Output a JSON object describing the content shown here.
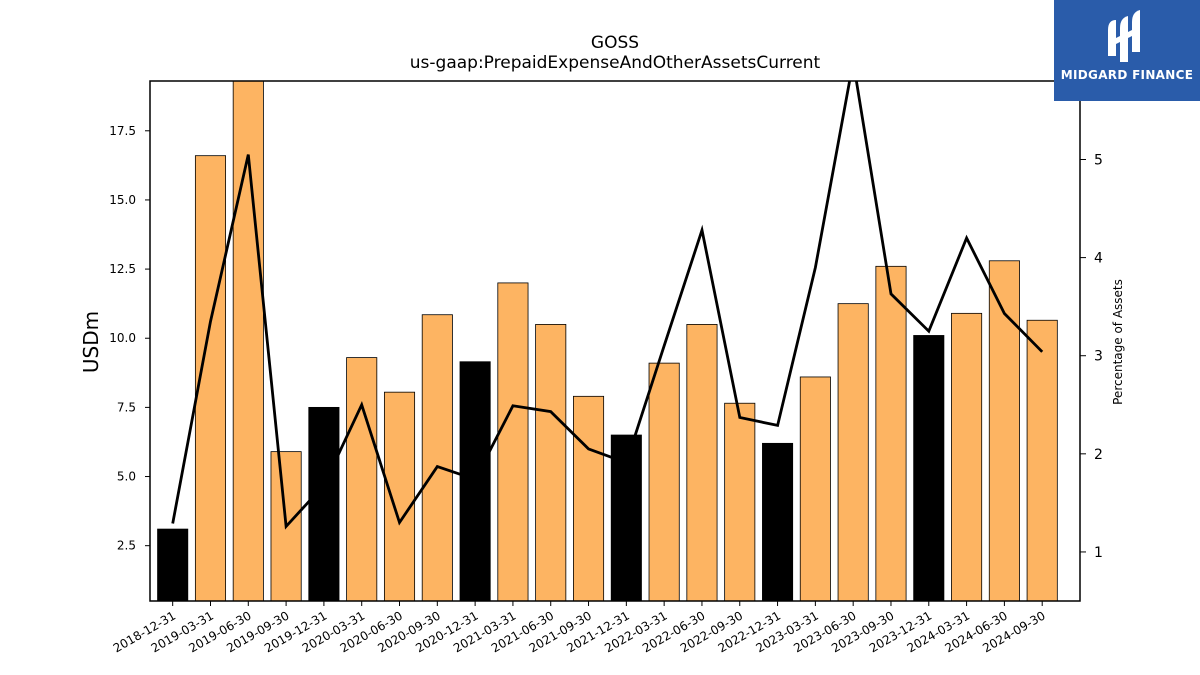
{
  "brand": {
    "name": "MIDGARD FINANCE",
    "logo_icon": "midgard-m-icon",
    "background": "#2a5caa"
  },
  "colors": {
    "quarter_bar": "#fdb462",
    "year_end_bar": "#000000",
    "line": "#000000"
  },
  "chart_data": {
    "type": "bar",
    "title": "GOSS",
    "subtitle": "us-gaap:PrepaidExpenseAndOtherAssetsCurrent",
    "ylabel": "USDm",
    "y2label": "Percentage of Assets",
    "ylim": [
      0.5,
      19.3
    ],
    "y2lim": [
      0.5,
      5.8
    ],
    "yticks": [
      "2.5",
      "5.0",
      "7.5",
      "10.0",
      "12.5",
      "15.0",
      "17.5"
    ],
    "y2ticks": [
      "1",
      "2",
      "3",
      "4",
      "5"
    ],
    "grid": false,
    "categories": [
      "2018-12-31",
      "2019-03-31",
      "2019-06-30",
      "2019-09-30",
      "2019-12-31",
      "2020-03-31",
      "2020-06-30",
      "2020-09-30",
      "2020-12-31",
      "2021-03-31",
      "2021-06-30",
      "2021-09-30",
      "2021-12-31",
      "2022-03-31",
      "2022-06-30",
      "2022-09-30",
      "2022-12-31",
      "2023-03-31",
      "2023-06-30",
      "2023-09-30",
      "2023-12-31",
      "2024-03-31",
      "2024-06-30",
      "2024-09-30"
    ],
    "series": [
      {
        "type": "bar",
        "values": [
          3.1,
          16.6,
          19.4,
          5.9,
          7.5,
          9.3,
          8.05,
          10.85,
          9.15,
          12.0,
          10.5,
          7.9,
          6.5,
          9.1,
          10.5,
          7.65,
          6.2,
          8.6,
          11.25,
          12.6,
          10.1,
          10.9,
          12.8,
          10.65
        ]
      },
      {
        "type": "line",
        "axis": "right",
        "values": [
          1.29,
          3.35,
          5.05,
          1.26,
          1.68,
          2.5,
          1.3,
          1.87,
          1.74,
          2.49,
          2.43,
          2.05,
          1.91,
          3.1,
          4.28,
          2.37,
          2.29,
          3.9,
          6.0,
          3.63,
          3.25,
          4.2,
          3.43,
          3.04
        ]
      }
    ]
  }
}
